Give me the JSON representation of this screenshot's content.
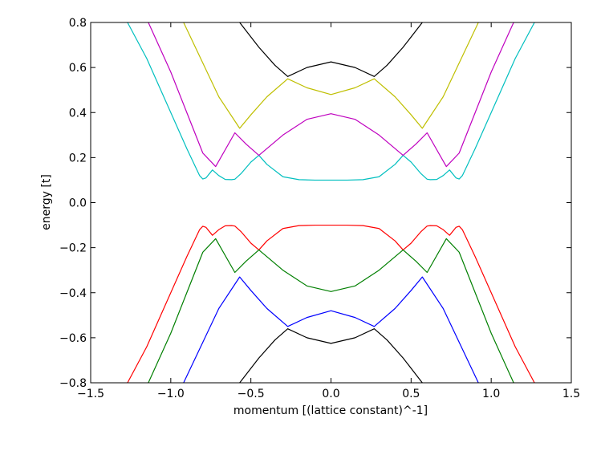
{
  "chart_data": {
    "type": "line",
    "title": "",
    "xlabel": "momentum [(lattice constant)^-1]",
    "ylabel": "energy [t]",
    "xlim": [
      -1.5,
      1.5
    ],
    "ylim": [
      -0.8,
      0.8
    ],
    "x_ticks": [
      "−1.5",
      "−1.0",
      "−0.5",
      "0.0",
      "0.5",
      "1.0",
      "1.5"
    ],
    "y_ticks": [
      "−0.8",
      "−0.6",
      "−0.4",
      "−0.2",
      "0.0",
      "0.2",
      "0.4",
      "0.6",
      "0.8"
    ],
    "grid": false,
    "legend": "none",
    "series": [
      {
        "color": "#00bfbf",
        "x": [
          -1.27,
          -1.15,
          -1.0,
          -0.9,
          -0.82,
          -0.8,
          -0.78,
          -0.74,
          -0.7,
          -0.66,
          -0.62,
          -0.6,
          -0.56,
          -0.5,
          -0.45,
          -0.4,
          -0.3,
          -0.2,
          -0.1,
          0.0,
          0.1,
          0.2,
          0.3,
          0.4,
          0.45,
          0.5,
          0.56,
          0.6,
          0.62,
          0.66,
          0.7,
          0.74,
          0.78,
          0.8,
          0.82,
          0.9,
          1.0,
          1.15,
          1.27
        ],
        "y": [
          0.8,
          0.64,
          0.4,
          0.24,
          0.12,
          0.105,
          0.11,
          0.145,
          0.12,
          0.103,
          0.102,
          0.104,
          0.13,
          0.18,
          0.21,
          0.17,
          0.115,
          0.102,
          0.1,
          0.1,
          0.1,
          0.102,
          0.115,
          0.17,
          0.21,
          0.18,
          0.13,
          0.104,
          0.102,
          0.103,
          0.12,
          0.145,
          0.11,
          0.105,
          0.12,
          0.24,
          0.4,
          0.64,
          0.8
        ]
      },
      {
        "color": "#bf00bf",
        "x": [
          -1.14,
          -1.0,
          -0.9,
          -0.8,
          -0.72,
          -0.6,
          -0.53,
          -0.45,
          -0.3,
          -0.15,
          0.0,
          0.15,
          0.3,
          0.45,
          0.53,
          0.6,
          0.72,
          0.8,
          0.9,
          1.0,
          1.14
        ],
        "y": [
          0.8,
          0.58,
          0.4,
          0.22,
          0.16,
          0.31,
          0.26,
          0.21,
          0.3,
          0.37,
          0.395,
          0.37,
          0.3,
          0.21,
          0.26,
          0.31,
          0.16,
          0.22,
          0.4,
          0.58,
          0.8
        ]
      },
      {
        "color": "#bfbf00",
        "x": [
          -0.92,
          -0.8,
          -0.7,
          -0.57,
          -0.5,
          -0.4,
          -0.27,
          -0.15,
          0.0,
          0.15,
          0.27,
          0.4,
          0.5,
          0.57,
          0.7,
          0.8,
          0.92
        ],
        "y": [
          0.8,
          0.62,
          0.47,
          0.33,
          0.39,
          0.47,
          0.55,
          0.51,
          0.48,
          0.51,
          0.55,
          0.47,
          0.39,
          0.33,
          0.47,
          0.62,
          0.8
        ]
      },
      {
        "color": "#000000",
        "x": [
          -0.57,
          -0.45,
          -0.35,
          -0.27,
          -0.15,
          0.0,
          0.15,
          0.27,
          0.35,
          0.45,
          0.57
        ],
        "y": [
          0.8,
          0.69,
          0.61,
          0.56,
          0.6,
          0.625,
          0.6,
          0.56,
          0.61,
          0.69,
          0.8
        ]
      },
      {
        "color": "#ff0000",
        "x": [
          -1.27,
          -1.15,
          -1.0,
          -0.9,
          -0.82,
          -0.8,
          -0.78,
          -0.74,
          -0.7,
          -0.66,
          -0.62,
          -0.6,
          -0.56,
          -0.5,
          -0.45,
          -0.4,
          -0.3,
          -0.2,
          -0.1,
          0.0,
          0.1,
          0.2,
          0.3,
          0.4,
          0.45,
          0.5,
          0.56,
          0.6,
          0.62,
          0.66,
          0.7,
          0.74,
          0.78,
          0.8,
          0.82,
          0.9,
          1.0,
          1.15,
          1.27
        ],
        "y": [
          -0.8,
          -0.64,
          -0.4,
          -0.24,
          -0.12,
          -0.105,
          -0.11,
          -0.145,
          -0.12,
          -0.103,
          -0.102,
          -0.104,
          -0.13,
          -0.18,
          -0.21,
          -0.17,
          -0.115,
          -0.102,
          -0.1,
          -0.1,
          -0.1,
          -0.102,
          -0.115,
          -0.17,
          -0.21,
          -0.18,
          -0.13,
          -0.104,
          -0.102,
          -0.103,
          -0.12,
          -0.145,
          -0.11,
          -0.105,
          -0.12,
          -0.24,
          -0.4,
          -0.64,
          -0.8
        ]
      },
      {
        "color": "#007f00",
        "x": [
          -1.14,
          -1.0,
          -0.9,
          -0.8,
          -0.72,
          -0.6,
          -0.53,
          -0.45,
          -0.3,
          -0.15,
          0.0,
          0.15,
          0.3,
          0.45,
          0.53,
          0.6,
          0.72,
          0.8,
          0.9,
          1.0,
          1.14
        ],
        "y": [
          -0.8,
          -0.58,
          -0.4,
          -0.22,
          -0.16,
          -0.31,
          -0.26,
          -0.21,
          -0.3,
          -0.37,
          -0.395,
          -0.37,
          -0.3,
          -0.21,
          -0.26,
          -0.31,
          -0.16,
          -0.22,
          -0.4,
          -0.58,
          -0.8
        ]
      },
      {
        "color": "#0000ff",
        "x": [
          -0.92,
          -0.8,
          -0.7,
          -0.57,
          -0.5,
          -0.4,
          -0.27,
          -0.15,
          0.0,
          0.15,
          0.27,
          0.4,
          0.5,
          0.57,
          0.7,
          0.8,
          0.92
        ],
        "y": [
          -0.8,
          -0.62,
          -0.47,
          -0.33,
          -0.39,
          -0.47,
          -0.55,
          -0.51,
          -0.48,
          -0.51,
          -0.55,
          -0.47,
          -0.39,
          -0.33,
          -0.47,
          -0.62,
          -0.8
        ]
      },
      {
        "color": "#000000",
        "x": [
          -0.57,
          -0.45,
          -0.35,
          -0.27,
          -0.15,
          0.0,
          0.15,
          0.27,
          0.35,
          0.45,
          0.57
        ],
        "y": [
          -0.8,
          -0.69,
          -0.61,
          -0.56,
          -0.6,
          -0.625,
          -0.6,
          -0.56,
          -0.61,
          -0.69,
          -0.8
        ]
      }
    ]
  }
}
